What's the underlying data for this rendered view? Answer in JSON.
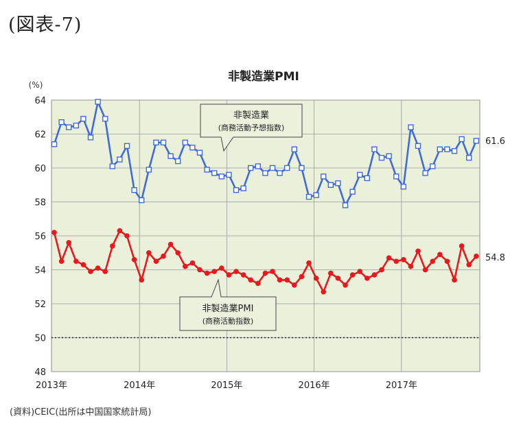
{
  "figure_label": "(図表-7)",
  "source": "(資料)CEIC(出所は中国国家統計局)",
  "chart_data": {
    "type": "line",
    "title": "非製造業PMI",
    "ylabel": "(%)",
    "ylim": [
      48,
      64
    ],
    "yticks": [
      "48",
      "50",
      "52",
      "54",
      "56",
      "58",
      "60",
      "62",
      "64"
    ],
    "year_labels": [
      "2013年",
      "2014年",
      "2015年",
      "2016年",
      "2017年"
    ],
    "start_month": "2013-01",
    "reference_line": 50,
    "grid": true,
    "background": "#eaf0da",
    "colors": {
      "expect": "#3f6bd8",
      "pmi": "#e8181c"
    },
    "series": [
      {
        "key": "expect",
        "name": "非製造業(商務活動予想指数)",
        "end_label": "61.6",
        "values": [
          61.4,
          62.7,
          62.4,
          62.5,
          62.9,
          61.8,
          63.9,
          62.9,
          60.1,
          60.5,
          61.3,
          58.7,
          58.1,
          59.9,
          61.5,
          61.5,
          60.7,
          60.4,
          61.5,
          61.2,
          60.9,
          59.9,
          59.7,
          59.5,
          59.6,
          58.7,
          58.8,
          60.0,
          60.1,
          59.7,
          60.0,
          59.7,
          60.0,
          61.1,
          60.0,
          58.3,
          58.4,
          59.5,
          59.0,
          59.1,
          57.8,
          58.6,
          59.6,
          59.4,
          61.1,
          60.6,
          60.7,
          59.5,
          58.9,
          62.4,
          61.3,
          59.7,
          60.1,
          61.1,
          61.1,
          61.0,
          61.7,
          60.6,
          61.6
        ]
      },
      {
        "key": "pmi",
        "name": "非製造業PMI(商務活動指数)",
        "end_label": "54.8",
        "values": [
          56.2,
          54.5,
          55.6,
          54.5,
          54.3,
          53.9,
          54.1,
          53.9,
          55.4,
          56.3,
          56.0,
          54.6,
          53.4,
          55.0,
          54.5,
          54.8,
          55.5,
          55.0,
          54.2,
          54.4,
          54.0,
          53.8,
          53.9,
          54.1,
          53.7,
          53.9,
          53.7,
          53.4,
          53.2,
          53.8,
          53.9,
          53.4,
          53.4,
          53.1,
          53.6,
          54.4,
          53.5,
          52.7,
          53.8,
          53.5,
          53.1,
          53.7,
          53.9,
          53.5,
          53.7,
          54.0,
          54.7,
          54.5,
          54.6,
          54.2,
          55.1,
          54.0,
          54.5,
          54.9,
          54.5,
          53.4,
          55.4,
          54.3,
          54.8
        ]
      }
    ],
    "callouts": {
      "expect": {
        "line1": "非製造業",
        "line2": "(商務活動予想指数)"
      },
      "pmi": {
        "line1": "非製造業PMI",
        "line2": "(商務活動指数)"
      }
    }
  }
}
